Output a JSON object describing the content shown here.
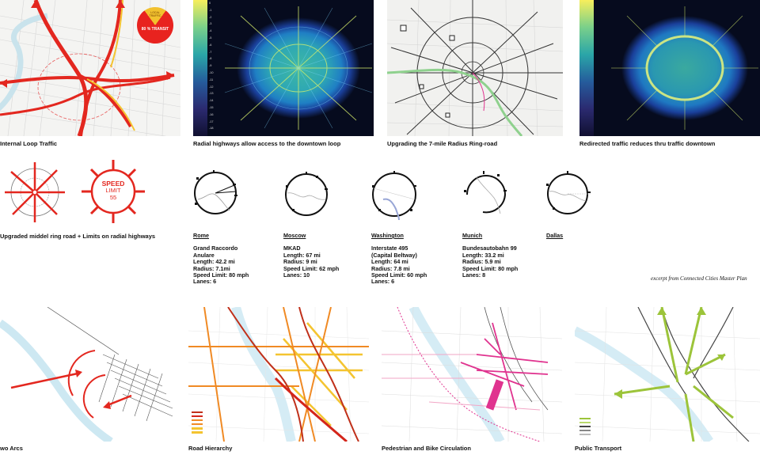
{
  "row1": {
    "captions": [
      "Internal Loop Traffic",
      "Radial highways allow access to the downtown loop",
      "Upgrading  the 7-mile Radius Ring-road",
      "Redirected traffic reduces thru traffic downtown"
    ],
    "pie": {
      "small_label": "LOCAL TRAFFIC",
      "big_label": "80 % TRANSIT",
      "big_color": "#e8231f",
      "small_color": "#f2c12e"
    },
    "heatmap_ticks": [
      "0",
      "-1",
      "-2",
      "-3",
      "-4",
      "-5",
      "-6",
      "-7",
      "-8",
      "-9",
      "-10",
      "-11",
      "-12",
      "-13",
      "-14",
      "-15",
      "-16",
      "-17",
      "-18"
    ]
  },
  "row2": {
    "caption": "Upgraded middel ring road + Limits on radial highways",
    "speed_sign": {
      "line1": "SPEED",
      "line2": "LIMIT",
      "line3": "55"
    },
    "excerpt": "excerpt from Connected Cities Master Plan",
    "cities": [
      {
        "name": "Rome",
        "lines": [
          "Grand Raccordo",
          "Anulare",
          "Length: 42.2 mi",
          "Radius: 7.1mi",
          "Speed Limit: 80 mph",
          "Lanes: 6"
        ]
      },
      {
        "name": "Moscow",
        "lines": [
          "MKAD",
          "Length: 67 mi",
          "Radius: 9 mi",
          "Speed Limit: 62 mph",
          "Lanes: 10"
        ]
      },
      {
        "name": "Washington",
        "lines": [
          "Interstate 495",
          "(Capital Beltway)",
          "Length: 64 mi",
          "Radius: 7.8 mi",
          "Speed Limit: 60 mph",
          "Lanes: 6"
        ]
      },
      {
        "name": "Munich",
        "lines": [
          "Bundesautobahn 99",
          "Length: 33.2 mi",
          "Radius: 5.9 mi",
          "Speed Limit: 80 mph",
          "Lanes: 8"
        ]
      },
      {
        "name": "Dallas",
        "lines": []
      }
    ]
  },
  "row3": {
    "captions": [
      "wo Arcs",
      "Road Hierarchy",
      "Pedestrian and Bike Circulation",
      "Public Transport"
    ]
  },
  "colors": {
    "red": "#e3271f",
    "yellow": "#f4c430",
    "river": "#bfe3ee",
    "orange": "#f08a24",
    "magenta": "#e0338f",
    "green": "#9cc43a"
  }
}
